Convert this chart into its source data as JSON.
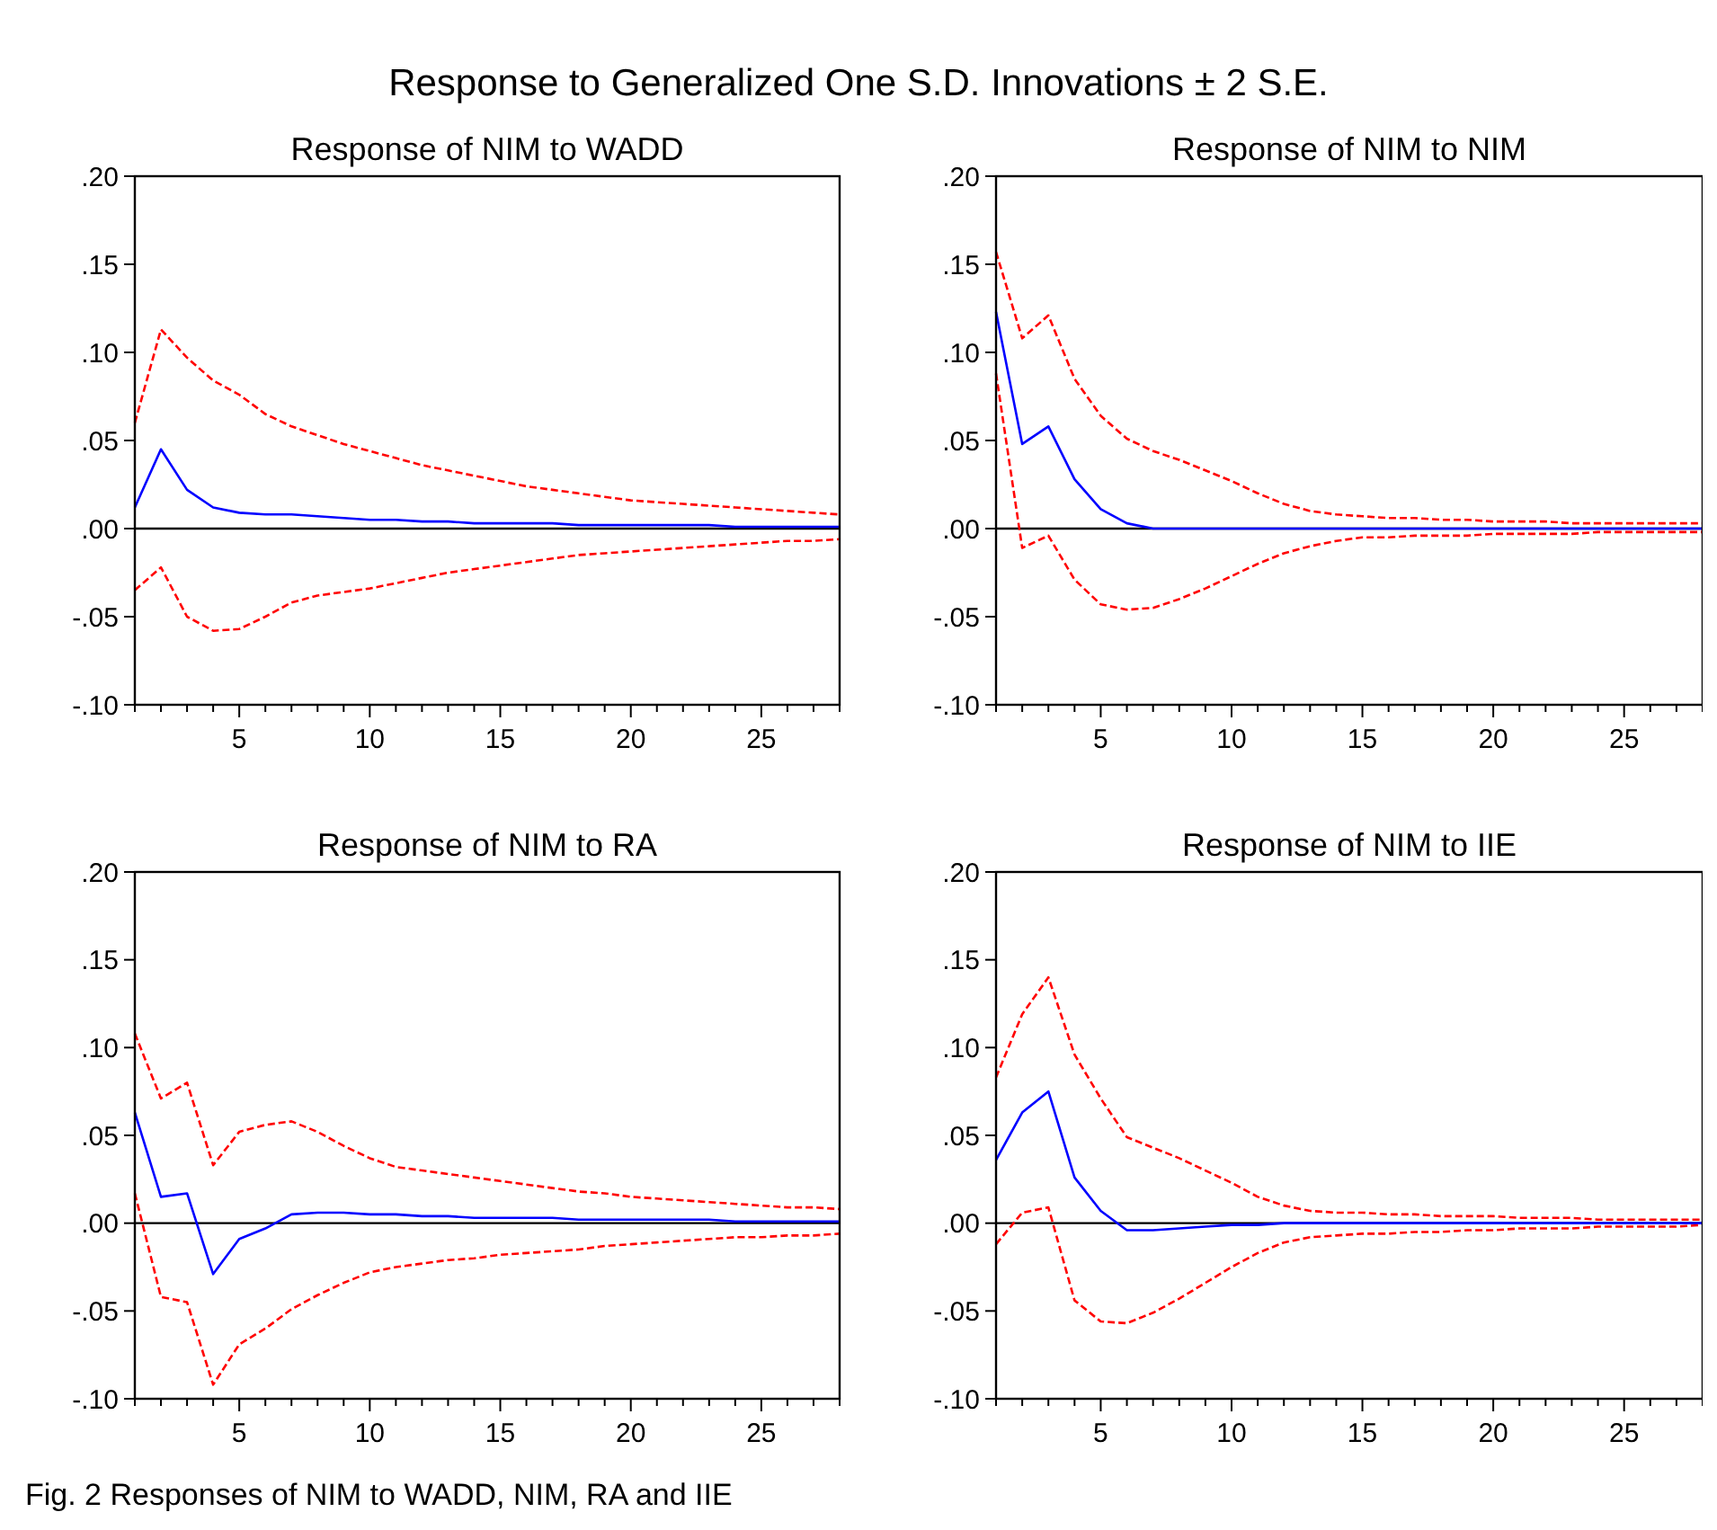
{
  "chart_data": [
    {
      "type": "line",
      "title": "Response of NIM to WADD",
      "annotations": [
        "Response to Generalized One S.D. Innovations ± 2 S.E."
      ],
      "x": [
        1,
        2,
        3,
        4,
        5,
        6,
        7,
        8,
        9,
        10,
        11,
        12,
        13,
        14,
        15,
        16,
        17,
        18,
        19,
        20,
        21,
        22,
        23,
        24,
        25,
        26,
        27,
        28
      ],
      "series": [
        {
          "color": "#0000ff",
          "line_style": "solid",
          "values": [
            0.012,
            0.045,
            0.022,
            0.012,
            0.009,
            0.008,
            0.008,
            0.007,
            0.006,
            0.005,
            0.005,
            0.004,
            0.004,
            0.003,
            0.003,
            0.003,
            0.003,
            0.002,
            0.002,
            0.002,
            0.002,
            0.002,
            0.002,
            0.001,
            0.001,
            0.001,
            0.001,
            0.001
          ]
        },
        {
          "color": "#ff0000",
          "line_style": "dashed",
          "values": [
            0.06,
            0.113,
            0.097,
            0.084,
            0.076,
            0.065,
            0.058,
            0.053,
            0.048,
            0.044,
            0.04,
            0.036,
            0.033,
            0.03,
            0.027,
            0.024,
            0.022,
            0.02,
            0.018,
            0.016,
            0.015,
            0.014,
            0.013,
            0.012,
            0.011,
            0.01,
            0.009,
            0.008
          ]
        },
        {
          "color": "#ff0000",
          "line_style": "dashed",
          "values": [
            -0.035,
            -0.022,
            -0.05,
            -0.058,
            -0.057,
            -0.05,
            -0.042,
            -0.038,
            -0.036,
            -0.034,
            -0.031,
            -0.028,
            -0.025,
            -0.023,
            -0.021,
            -0.019,
            -0.017,
            -0.015,
            -0.014,
            -0.013,
            -0.012,
            -0.011,
            -0.01,
            -0.009,
            -0.008,
            -0.007,
            -0.007,
            -0.006
          ]
        }
      ],
      "ref_lines": [
        {
          "axis": "y",
          "value": 0,
          "color": "#000000"
        }
      ],
      "xlim": [
        1,
        28
      ],
      "xticks": [
        {
          "value": 1,
          "label": null
        },
        {
          "value": 2,
          "label": null
        },
        {
          "value": 3,
          "label": null
        },
        {
          "value": 4,
          "label": null
        },
        5,
        {
          "value": 6,
          "label": null
        },
        {
          "value": 7,
          "label": null
        },
        {
          "value": 8,
          "label": null
        },
        {
          "value": 9,
          "label": null
        },
        10,
        {
          "value": 11,
          "label": null
        },
        {
          "value": 12,
          "label": null
        },
        {
          "value": 13,
          "label": null
        },
        {
          "value": 14,
          "label": null
        },
        15,
        {
          "value": 16,
          "label": null
        },
        {
          "value": 17,
          "label": null
        },
        {
          "value": 18,
          "label": null
        },
        {
          "value": 19,
          "label": null
        },
        20,
        {
          "value": 21,
          "label": null
        },
        {
          "value": 22,
          "label": null
        },
        {
          "value": 23,
          "label": null
        },
        {
          "value": 24,
          "label": null
        },
        25,
        {
          "value": 26,
          "label": null
        },
        {
          "value": 27,
          "label": null
        },
        {
          "value": 28,
          "label": null
        }
      ],
      "ylim": [
        -0.1,
        0.2
      ],
      "yticks": [
        {
          "value": -0.1,
          "label": "-.10"
        },
        {
          "value": -0.05,
          "label": "-.05"
        },
        {
          "value": 0,
          "label": ".00"
        },
        {
          "value": 0.05,
          "label": ".05"
        },
        {
          "value": 0.1,
          "label": ".10"
        },
        {
          "value": 0.15,
          "label": ".15"
        },
        {
          "value": 0.2,
          "label": ".20"
        }
      ],
      "grid": false
    },
    {
      "type": "line",
      "title": "Response of NIM to NIM",
      "x": [
        1,
        2,
        3,
        4,
        5,
        6,
        7,
        8,
        9,
        10,
        11,
        12,
        13,
        14,
        15,
        16,
        17,
        18,
        19,
        20,
        21,
        22,
        23,
        24,
        25,
        26,
        27,
        28
      ],
      "series": [
        {
          "color": "#0000ff",
          "line_style": "solid",
          "values": [
            0.123,
            0.048,
            0.058,
            0.028,
            0.011,
            0.003,
            0,
            0,
            0,
            0,
            0,
            0,
            0,
            0,
            0,
            0,
            0,
            0,
            0,
            0,
            0,
            0,
            0,
            0,
            0,
            0,
            0,
            0
          ]
        },
        {
          "color": "#ff0000",
          "line_style": "dashed",
          "values": [
            0.157,
            0.108,
            0.121,
            0.085,
            0.064,
            0.051,
            0.044,
            0.039,
            0.033,
            0.027,
            0.02,
            0.014,
            0.01,
            0.008,
            0.007,
            0.006,
            0.006,
            0.005,
            0.005,
            0.004,
            0.004,
            0.004,
            0.003,
            0.003,
            0.003,
            0.003,
            0.003,
            0.003
          ]
        },
        {
          "color": "#ff0000",
          "line_style": "dashed",
          "values": [
            0.088,
            -0.011,
            -0.004,
            -0.029,
            -0.043,
            -0.046,
            -0.045,
            -0.04,
            -0.034,
            -0.027,
            -0.02,
            -0.014,
            -0.01,
            -0.007,
            -0.005,
            -0.005,
            -0.004,
            -0.004,
            -0.004,
            -0.003,
            -0.003,
            -0.003,
            -0.003,
            -0.002,
            -0.002,
            -0.002,
            -0.002,
            -0.002
          ]
        }
      ],
      "ref_lines": [
        {
          "axis": "y",
          "value": 0,
          "color": "#000000"
        }
      ],
      "xlim": [
        1,
        28
      ],
      "xticks": [
        {
          "value": 1,
          "label": null
        },
        {
          "value": 2,
          "label": null
        },
        {
          "value": 3,
          "label": null
        },
        {
          "value": 4,
          "label": null
        },
        5,
        {
          "value": 6,
          "label": null
        },
        {
          "value": 7,
          "label": null
        },
        {
          "value": 8,
          "label": null
        },
        {
          "value": 9,
          "label": null
        },
        10,
        {
          "value": 11,
          "label": null
        },
        {
          "value": 12,
          "label": null
        },
        {
          "value": 13,
          "label": null
        },
        {
          "value": 14,
          "label": null
        },
        15,
        {
          "value": 16,
          "label": null
        },
        {
          "value": 17,
          "label": null
        },
        {
          "value": 18,
          "label": null
        },
        {
          "value": 19,
          "label": null
        },
        20,
        {
          "value": 21,
          "label": null
        },
        {
          "value": 22,
          "label": null
        },
        {
          "value": 23,
          "label": null
        },
        {
          "value": 24,
          "label": null
        },
        25,
        {
          "value": 26,
          "label": null
        },
        {
          "value": 27,
          "label": null
        },
        {
          "value": 28,
          "label": null
        }
      ],
      "ylim": [
        -0.1,
        0.2
      ],
      "yticks": [
        {
          "value": -0.1,
          "label": "-.10"
        },
        {
          "value": -0.05,
          "label": "-.05"
        },
        {
          "value": 0,
          "label": ".00"
        },
        {
          "value": 0.05,
          "label": ".05"
        },
        {
          "value": 0.1,
          "label": ".10"
        },
        {
          "value": 0.15,
          "label": ".15"
        },
        {
          "value": 0.2,
          "label": ".20"
        }
      ],
      "grid": false
    },
    {
      "type": "line",
      "title": "Response of NIM to RA",
      "x": [
        1,
        2,
        3,
        4,
        5,
        6,
        7,
        8,
        9,
        10,
        11,
        12,
        13,
        14,
        15,
        16,
        17,
        18,
        19,
        20,
        21,
        22,
        23,
        24,
        25,
        26,
        27,
        28
      ],
      "series": [
        {
          "color": "#0000ff",
          "line_style": "solid",
          "values": [
            0.063,
            0.015,
            0.017,
            -0.029,
            -0.009,
            -0.003,
            0.005,
            0.006,
            0.006,
            0.005,
            0.005,
            0.004,
            0.004,
            0.003,
            0.003,
            0.003,
            0.003,
            0.002,
            0.002,
            0.002,
            0.002,
            0.002,
            0.002,
            0.001,
            0.001,
            0.001,
            0.001,
            0.001
          ]
        },
        {
          "color": "#ff0000",
          "line_style": "dashed",
          "values": [
            0.108,
            0.071,
            0.08,
            0.033,
            0.052,
            0.056,
            0.058,
            0.052,
            0.044,
            0.037,
            0.032,
            0.03,
            0.028,
            0.026,
            0.024,
            0.022,
            0.02,
            0.018,
            0.017,
            0.015,
            0.014,
            0.013,
            0.012,
            0.011,
            0.01,
            0.009,
            0.009,
            0.008
          ]
        },
        {
          "color": "#ff0000",
          "line_style": "dashed",
          "values": [
            0.017,
            -0.042,
            -0.045,
            -0.092,
            -0.069,
            -0.06,
            -0.049,
            -0.041,
            -0.034,
            -0.028,
            -0.025,
            -0.023,
            -0.021,
            -0.02,
            -0.018,
            -0.017,
            -0.016,
            -0.015,
            -0.013,
            -0.012,
            -0.011,
            -0.01,
            -0.009,
            -0.008,
            -0.008,
            -0.007,
            -0.007,
            -0.006
          ]
        }
      ],
      "ref_lines": [
        {
          "axis": "y",
          "value": 0,
          "color": "#000000"
        }
      ],
      "xlim": [
        1,
        28
      ],
      "xticks": [
        {
          "value": 1,
          "label": null
        },
        {
          "value": 2,
          "label": null
        },
        {
          "value": 3,
          "label": null
        },
        {
          "value": 4,
          "label": null
        },
        5,
        {
          "value": 6,
          "label": null
        },
        {
          "value": 7,
          "label": null
        },
        {
          "value": 8,
          "label": null
        },
        {
          "value": 9,
          "label": null
        },
        10,
        {
          "value": 11,
          "label": null
        },
        {
          "value": 12,
          "label": null
        },
        {
          "value": 13,
          "label": null
        },
        {
          "value": 14,
          "label": null
        },
        15,
        {
          "value": 16,
          "label": null
        },
        {
          "value": 17,
          "label": null
        },
        {
          "value": 18,
          "label": null
        },
        {
          "value": 19,
          "label": null
        },
        20,
        {
          "value": 21,
          "label": null
        },
        {
          "value": 22,
          "label": null
        },
        {
          "value": 23,
          "label": null
        },
        {
          "value": 24,
          "label": null
        },
        25,
        {
          "value": 26,
          "label": null
        },
        {
          "value": 27,
          "label": null
        },
        {
          "value": 28,
          "label": null
        }
      ],
      "ylim": [
        -0.1,
        0.2
      ],
      "yticks": [
        {
          "value": -0.1,
          "label": "-.10"
        },
        {
          "value": -0.05,
          "label": "-.05"
        },
        {
          "value": 0,
          "label": ".00"
        },
        {
          "value": 0.05,
          "label": ".05"
        },
        {
          "value": 0.1,
          "label": ".10"
        },
        {
          "value": 0.15,
          "label": ".15"
        },
        {
          "value": 0.2,
          "label": ".20"
        }
      ],
      "grid": false
    },
    {
      "type": "line",
      "title": "Response of NIM to IIE",
      "annotations": [
        "Fig. 2  Responses of NIM to WADD, NIM, RA and IIE"
      ],
      "x": [
        1,
        2,
        3,
        4,
        5,
        6,
        7,
        8,
        9,
        10,
        11,
        12,
        13,
        14,
        15,
        16,
        17,
        18,
        19,
        20,
        21,
        22,
        23,
        24,
        25,
        26,
        27,
        28
      ],
      "series": [
        {
          "color": "#0000ff",
          "line_style": "solid",
          "values": [
            0.036,
            0.063,
            0.075,
            0.026,
            0.007,
            -0.004,
            -0.004,
            -0.003,
            -0.002,
            -0.001,
            -0.001,
            0,
            0,
            0,
            0,
            0,
            0,
            0,
            0,
            0,
            0,
            0,
            0,
            0,
            0,
            0,
            0,
            0
          ]
        },
        {
          "color": "#ff0000",
          "line_style": "dashed",
          "values": [
            0.083,
            0.119,
            0.14,
            0.096,
            0.071,
            0.049,
            0.043,
            0.037,
            0.03,
            0.023,
            0.015,
            0.01,
            0.007,
            0.006,
            0.006,
            0.005,
            0.005,
            0.004,
            0.004,
            0.004,
            0.003,
            0.003,
            0.003,
            0.002,
            0.002,
            0.002,
            0.002,
            0.002
          ]
        },
        {
          "color": "#ff0000",
          "line_style": "dashed",
          "values": [
            -0.012,
            0.006,
            0.009,
            -0.044,
            -0.056,
            -0.057,
            -0.051,
            -0.043,
            -0.034,
            -0.025,
            -0.017,
            -0.011,
            -0.008,
            -0.007,
            -0.006,
            -0.006,
            -0.005,
            -0.005,
            -0.004,
            -0.004,
            -0.003,
            -0.003,
            -0.003,
            -0.002,
            -0.002,
            -0.002,
            -0.002,
            -0.001
          ]
        }
      ],
      "ref_lines": [
        {
          "axis": "y",
          "value": 0,
          "color": "#000000"
        }
      ],
      "xlim": [
        1,
        28
      ],
      "xticks": [
        {
          "value": 1,
          "label": null
        },
        {
          "value": 2,
          "label": null
        },
        {
          "value": 3,
          "label": null
        },
        {
          "value": 4,
          "label": null
        },
        5,
        {
          "value": 6,
          "label": null
        },
        {
          "value": 7,
          "label": null
        },
        {
          "value": 8,
          "label": null
        },
        {
          "value": 9,
          "label": null
        },
        10,
        {
          "value": 11,
          "label": null
        },
        {
          "value": 12,
          "label": null
        },
        {
          "value": 13,
          "label": null
        },
        {
          "value": 14,
          "label": null
        },
        15,
        {
          "value": 16,
          "label": null
        },
        {
          "value": 17,
          "label": null
        },
        {
          "value": 18,
          "label": null
        },
        {
          "value": 19,
          "label": null
        },
        20,
        {
          "value": 21,
          "label": null
        },
        {
          "value": 22,
          "label": null
        },
        {
          "value": 23,
          "label": null
        },
        {
          "value": 24,
          "label": null
        },
        25,
        {
          "value": 26,
          "label": null
        },
        {
          "value": 27,
          "label": null
        },
        {
          "value": 28,
          "label": null
        }
      ],
      "ylim": [
        -0.1,
        0.2
      ],
      "yticks": [
        {
          "value": -0.1,
          "label": "-.10"
        },
        {
          "value": -0.05,
          "label": "-.05"
        },
        {
          "value": 0,
          "label": ".00"
        },
        {
          "value": 0.05,
          "label": ".05"
        },
        {
          "value": 0.1,
          "label": ".10"
        },
        {
          "value": 0.15,
          "label": ".15"
        },
        {
          "value": 0.2,
          "label": ".20"
        }
      ],
      "grid": false
    }
  ]
}
